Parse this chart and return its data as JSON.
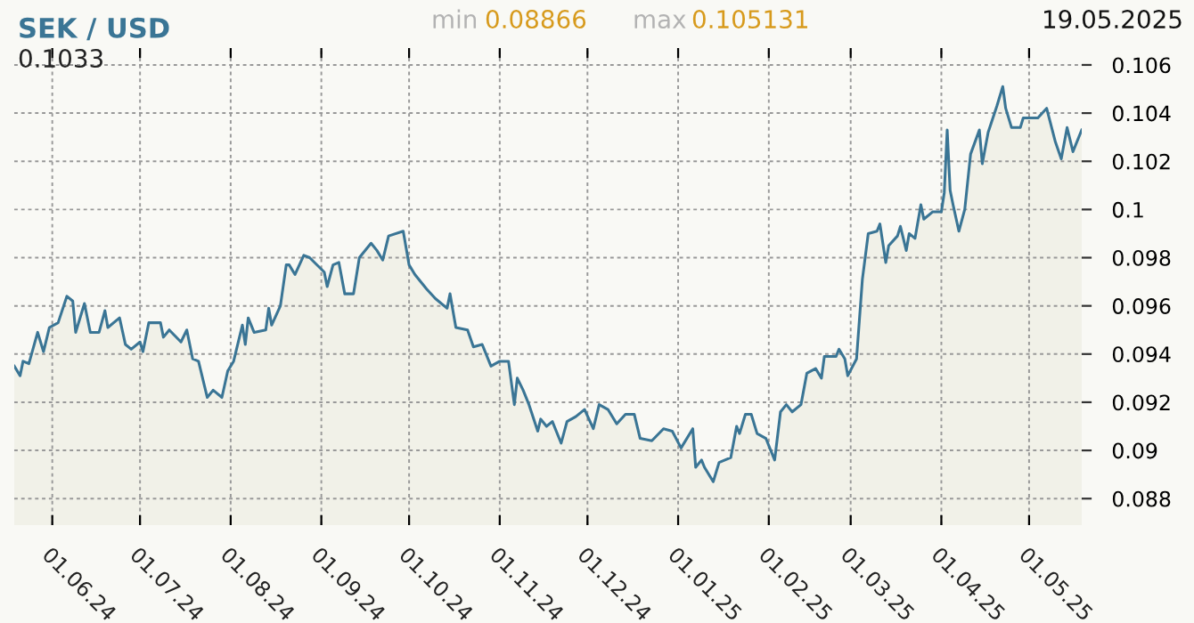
{
  "chart_data": {
    "type": "area",
    "title": "SEK / USD",
    "annotations": [
      "min",
      "0.08866",
      "max",
      "0.105131",
      "19.05.2025",
      "0.1033"
    ],
    "xlim": [
      "2024-05-19",
      "2025-05-19"
    ],
    "xticks": [
      {
        "value": "2024-06-01",
        "label": "01.06.24"
      },
      {
        "value": "2024-07-01",
        "label": "01.07.24"
      },
      {
        "value": "2024-08-01",
        "label": "01.08.24"
      },
      {
        "value": "2024-09-01",
        "label": "01.09.24"
      },
      {
        "value": "2024-10-01",
        "label": "01.10.24"
      },
      {
        "value": "2024-11-01",
        "label": "01.11.24"
      },
      {
        "value": "2024-12-01",
        "label": "01.12.24"
      },
      {
        "value": "2025-01-01",
        "label": "01.01.25"
      },
      {
        "value": "2025-02-01",
        "label": "01.02.25"
      },
      {
        "value": "2025-03-01",
        "label": "01.03.25"
      },
      {
        "value": "2025-04-01",
        "label": "01.04.25"
      },
      {
        "value": "2025-05-01",
        "label": "01.05.25"
      }
    ],
    "ylim": [
      0.0869,
      0.1067
    ],
    "yticks": [
      0.088,
      0.09,
      0.092,
      0.094,
      0.096,
      0.098,
      0.1,
      0.102,
      0.104,
      0.106
    ],
    "grid": true,
    "line_style": "dashed",
    "series": [
      {
        "color": "#3a7595",
        "x": [
          "2024-05-19",
          "2024-05-21",
          "2024-05-22",
          "2024-05-24",
          "2024-05-27",
          "2024-05-29",
          "2024-05-31",
          "2024-06-03",
          "2024-06-06",
          "2024-06-08",
          "2024-06-09",
          "2024-06-12",
          "2024-06-14",
          "2024-06-17",
          "2024-06-19",
          "2024-06-20",
          "2024-06-24",
          "2024-06-26",
          "2024-06-28",
          "2024-07-01",
          "2024-07-02",
          "2024-07-04",
          "2024-07-08",
          "2024-07-09",
          "2024-07-11",
          "2024-07-15",
          "2024-07-17",
          "2024-07-19",
          "2024-07-21",
          "2024-07-24",
          "2024-07-26",
          "2024-07-29",
          "2024-07-31",
          "2024-08-02",
          "2024-08-05",
          "2024-08-06",
          "2024-08-07",
          "2024-08-09",
          "2024-08-13",
          "2024-08-14",
          "2024-08-15",
          "2024-08-18",
          "2024-08-20",
          "2024-08-21",
          "2024-08-23",
          "2024-08-26",
          "2024-08-28",
          "2024-09-02",
          "2024-09-03",
          "2024-09-05",
          "2024-09-07",
          "2024-09-09",
          "2024-09-12",
          "2024-09-14",
          "2024-09-18",
          "2024-09-20",
          "2024-09-22",
          "2024-09-24",
          "2024-09-29",
          "2024-10-01",
          "2024-10-03",
          "2024-10-07",
          "2024-10-10",
          "2024-10-14",
          "2024-10-15",
          "2024-10-17",
          "2024-10-21",
          "2024-10-23",
          "2024-10-26",
          "2024-10-29",
          "2024-11-01",
          "2024-11-04",
          "2024-11-06",
          "2024-11-07",
          "2024-11-09",
          "2024-11-11",
          "2024-11-14",
          "2024-11-15",
          "2024-11-17",
          "2024-11-19",
          "2024-11-22",
          "2024-11-24",
          "2024-11-27",
          "2024-11-30",
          "2024-12-03",
          "2024-12-05",
          "2024-12-08",
          "2024-12-11",
          "2024-12-14",
          "2024-12-17",
          "2024-12-19",
          "2024-12-23",
          "2024-12-27",
          "2024-12-30",
          "2025-01-02",
          "2025-01-06",
          "2025-01-07",
          "2025-01-09",
          "2025-01-10",
          "2025-01-13",
          "2025-01-15",
          "2025-01-19",
          "2025-01-21",
          "2025-01-22",
          "2025-01-24",
          "2025-01-26",
          "2025-01-28",
          "2025-01-31",
          "2025-02-03",
          "2025-02-05",
          "2025-02-07",
          "2025-02-09",
          "2025-02-12",
          "2025-02-14",
          "2025-02-17",
          "2025-02-19",
          "2025-02-20",
          "2025-02-24",
          "2025-02-25",
          "2025-02-27",
          "2025-02-28",
          "2025-03-03",
          "2025-03-05",
          "2025-03-07",
          "2025-03-10",
          "2025-03-11",
          "2025-03-13",
          "2025-03-14",
          "2025-03-17",
          "2025-03-18",
          "2025-03-20",
          "2025-03-21",
          "2025-03-23",
          "2025-03-25",
          "2025-03-26",
          "2025-03-29",
          "2025-04-01",
          "2025-04-02",
          "2025-04-03",
          "2025-04-04",
          "2025-04-05",
          "2025-04-07",
          "2025-04-09",
          "2025-04-11",
          "2025-04-14",
          "2025-04-15",
          "2025-04-17",
          "2025-04-20",
          "2025-04-22",
          "2025-04-23",
          "2025-04-25",
          "2025-04-28",
          "2025-04-29",
          "2025-05-04",
          "2025-05-07",
          "2025-05-10",
          "2025-05-12",
          "2025-05-14",
          "2025-05-16",
          "2025-05-19"
        ],
        "values": [
          0.0935,
          0.0931,
          0.0937,
          0.0936,
          0.0949,
          0.0941,
          0.0951,
          0.0953,
          0.0964,
          0.0962,
          0.0949,
          0.0961,
          0.0949,
          0.0949,
          0.0958,
          0.0951,
          0.0955,
          0.0944,
          0.0942,
          0.0945,
          0.0941,
          0.0953,
          0.0953,
          0.0947,
          0.095,
          0.0945,
          0.095,
          0.0938,
          0.0937,
          0.0922,
          0.0925,
          0.0922,
          0.0933,
          0.0937,
          0.0952,
          0.0944,
          0.0955,
          0.0949,
          0.095,
          0.0959,
          0.0952,
          0.096,
          0.0977,
          0.0977,
          0.0973,
          0.0981,
          0.098,
          0.0974,
          0.0968,
          0.0977,
          0.0978,
          0.0965,
          0.0965,
          0.098,
          0.0986,
          0.0983,
          0.0979,
          0.0989,
          0.0991,
          0.0977,
          0.0973,
          0.0967,
          0.0963,
          0.0959,
          0.0965,
          0.0951,
          0.095,
          0.0943,
          0.0944,
          0.0935,
          0.0937,
          0.0937,
          0.0919,
          0.093,
          0.0925,
          0.0919,
          0.0908,
          0.0913,
          0.091,
          0.0912,
          0.0903,
          0.0912,
          0.0914,
          0.0917,
          0.0909,
          0.0919,
          0.0917,
          0.0911,
          0.0915,
          0.0915,
          0.0905,
          0.0904,
          0.0909,
          0.0908,
          0.0901,
          0.0909,
          0.0893,
          0.0896,
          0.0893,
          0.0887,
          0.0895,
          0.0897,
          0.091,
          0.0907,
          0.0915,
          0.0915,
          0.0907,
          0.0905,
          0.0896,
          0.0916,
          0.0919,
          0.0916,
          0.0919,
          0.0932,
          0.0934,
          0.093,
          0.0939,
          0.0939,
          0.0942,
          0.0938,
          0.0931,
          0.0938,
          0.0971,
          0.099,
          0.0991,
          0.0994,
          0.0978,
          0.0985,
          0.0989,
          0.0993,
          0.0983,
          0.099,
          0.0988,
          0.1002,
          0.0996,
          0.0999,
          0.0999,
          0.1007,
          0.1033,
          0.1008,
          0.1002,
          0.0991,
          0.1,
          0.1023,
          0.1033,
          0.1019,
          0.1032,
          0.1043,
          0.1051,
          0.1042,
          0.1034,
          0.1034,
          0.1038,
          0.1038,
          0.1042,
          0.1028,
          0.1021,
          0.1034,
          0.1024,
          0.1033
        ]
      }
    ]
  }
}
